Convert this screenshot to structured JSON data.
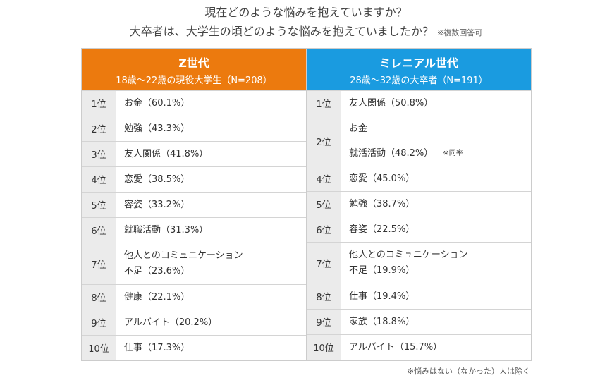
{
  "header": {
    "title_lines": [
      "現在どのような悩みを抱えていますか？",
      "大卒者は、大学生の頃どのような悩みを抱えていましたか？"
    ],
    "note": "※複数回答可"
  },
  "columns": [
    {
      "title": "Z世代",
      "subtitle": "18歳〜22歳の現役大学生（N=208）",
      "rows": [
        {
          "rank": "1位",
          "items": [
            "お金（60.1%）"
          ]
        },
        {
          "rank": "2位",
          "items": [
            "勉強（43.3%）"
          ]
        },
        {
          "rank": "3位",
          "items": [
            "友人関係（41.8%）"
          ]
        },
        {
          "rank": "4位",
          "items": [
            "恋愛（38.5%）"
          ]
        },
        {
          "rank": "5位",
          "items": [
            "容姿（33.2%）"
          ]
        },
        {
          "rank": "6位",
          "items": [
            "就職活動（31.3%）"
          ]
        },
        {
          "rank": "7位",
          "items": [
            "他人とのコミュニケーション\n不足（23.6%）"
          ]
        },
        {
          "rank": "8位",
          "items": [
            "健康（22.1%）"
          ]
        },
        {
          "rank": "9位",
          "items": [
            "アルバイト（20.2%）"
          ]
        },
        {
          "rank": "10位",
          "items": [
            "仕事（17.3%）"
          ]
        }
      ]
    },
    {
      "title": "ミレニアル世代",
      "subtitle": "28歳〜32歳の大卒者（N=191）",
      "rows": [
        {
          "rank": "1位",
          "items": [
            "友人関係（50.8%）"
          ]
        },
        {
          "rank": "2位",
          "items": [
            "お金",
            "就活活動（48.2%）"
          ],
          "note": "※同率"
        },
        {
          "rank": "4位",
          "items": [
            "恋愛（45.0%）"
          ]
        },
        {
          "rank": "5位",
          "items": [
            "勉強（38.7%）"
          ]
        },
        {
          "rank": "6位",
          "items": [
            "容姿（22.5%）"
          ]
        },
        {
          "rank": "7位",
          "items": [
            "他人とのコミュニケーション\n不足（19.9%）"
          ]
        },
        {
          "rank": "8位",
          "items": [
            "仕事（19.4%）"
          ]
        },
        {
          "rank": "9位",
          "items": [
            "家族（18.8%）"
          ]
        },
        {
          "rank": "10位",
          "items": [
            "アルバイト（15.7%）"
          ]
        }
      ]
    }
  ],
  "footnote": "※悩みはない（なかった）人は除く"
}
